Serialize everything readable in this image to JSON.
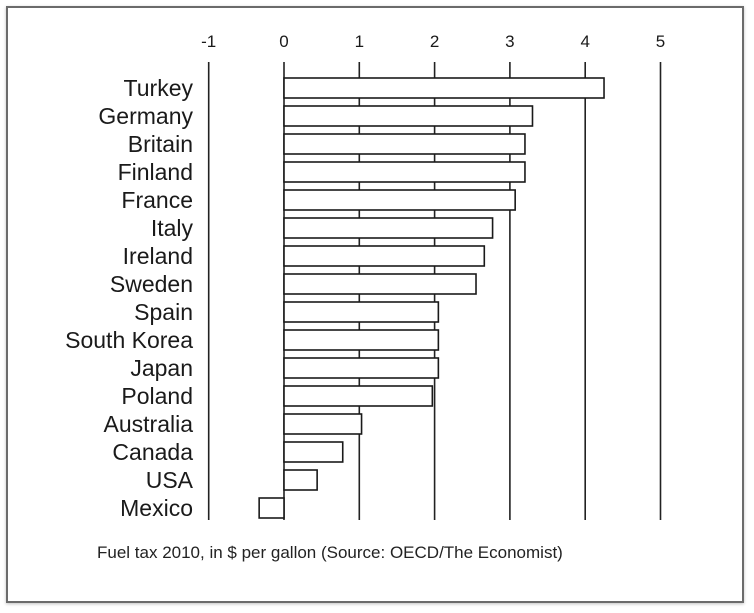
{
  "chart_data": {
    "type": "bar",
    "orientation": "horizontal",
    "categories": [
      "Turkey",
      "Germany",
      "Britain",
      "Finland",
      "France",
      "Italy",
      "Ireland",
      "Sweden",
      "Spain",
      "South Korea",
      "Japan",
      "Poland",
      "Australia",
      "Canada",
      "USA",
      "Mexico"
    ],
    "values": [
      4.25,
      3.3,
      3.2,
      3.2,
      3.07,
      2.77,
      2.66,
      2.55,
      2.05,
      2.05,
      2.05,
      1.97,
      1.03,
      0.78,
      0.44,
      -0.33
    ],
    "ticks": [
      "-1",
      "0",
      "1",
      "2",
      "3",
      "4",
      "5"
    ],
    "tick_values": [
      -1,
      0,
      1,
      2,
      3,
      4,
      5
    ],
    "xlim": [
      -1,
      5
    ],
    "gridlines": [
      -1,
      0,
      1,
      2,
      3,
      4,
      5
    ],
    "grid": true,
    "caption": "Fuel tax 2010, in $ per gallon (Source: OECD/The Economist)",
    "colors": {
      "bar_fill": "#ffffff",
      "bar_stroke": "#1a1a1a",
      "grid": "#222222",
      "text": "#1a1a1a"
    }
  }
}
